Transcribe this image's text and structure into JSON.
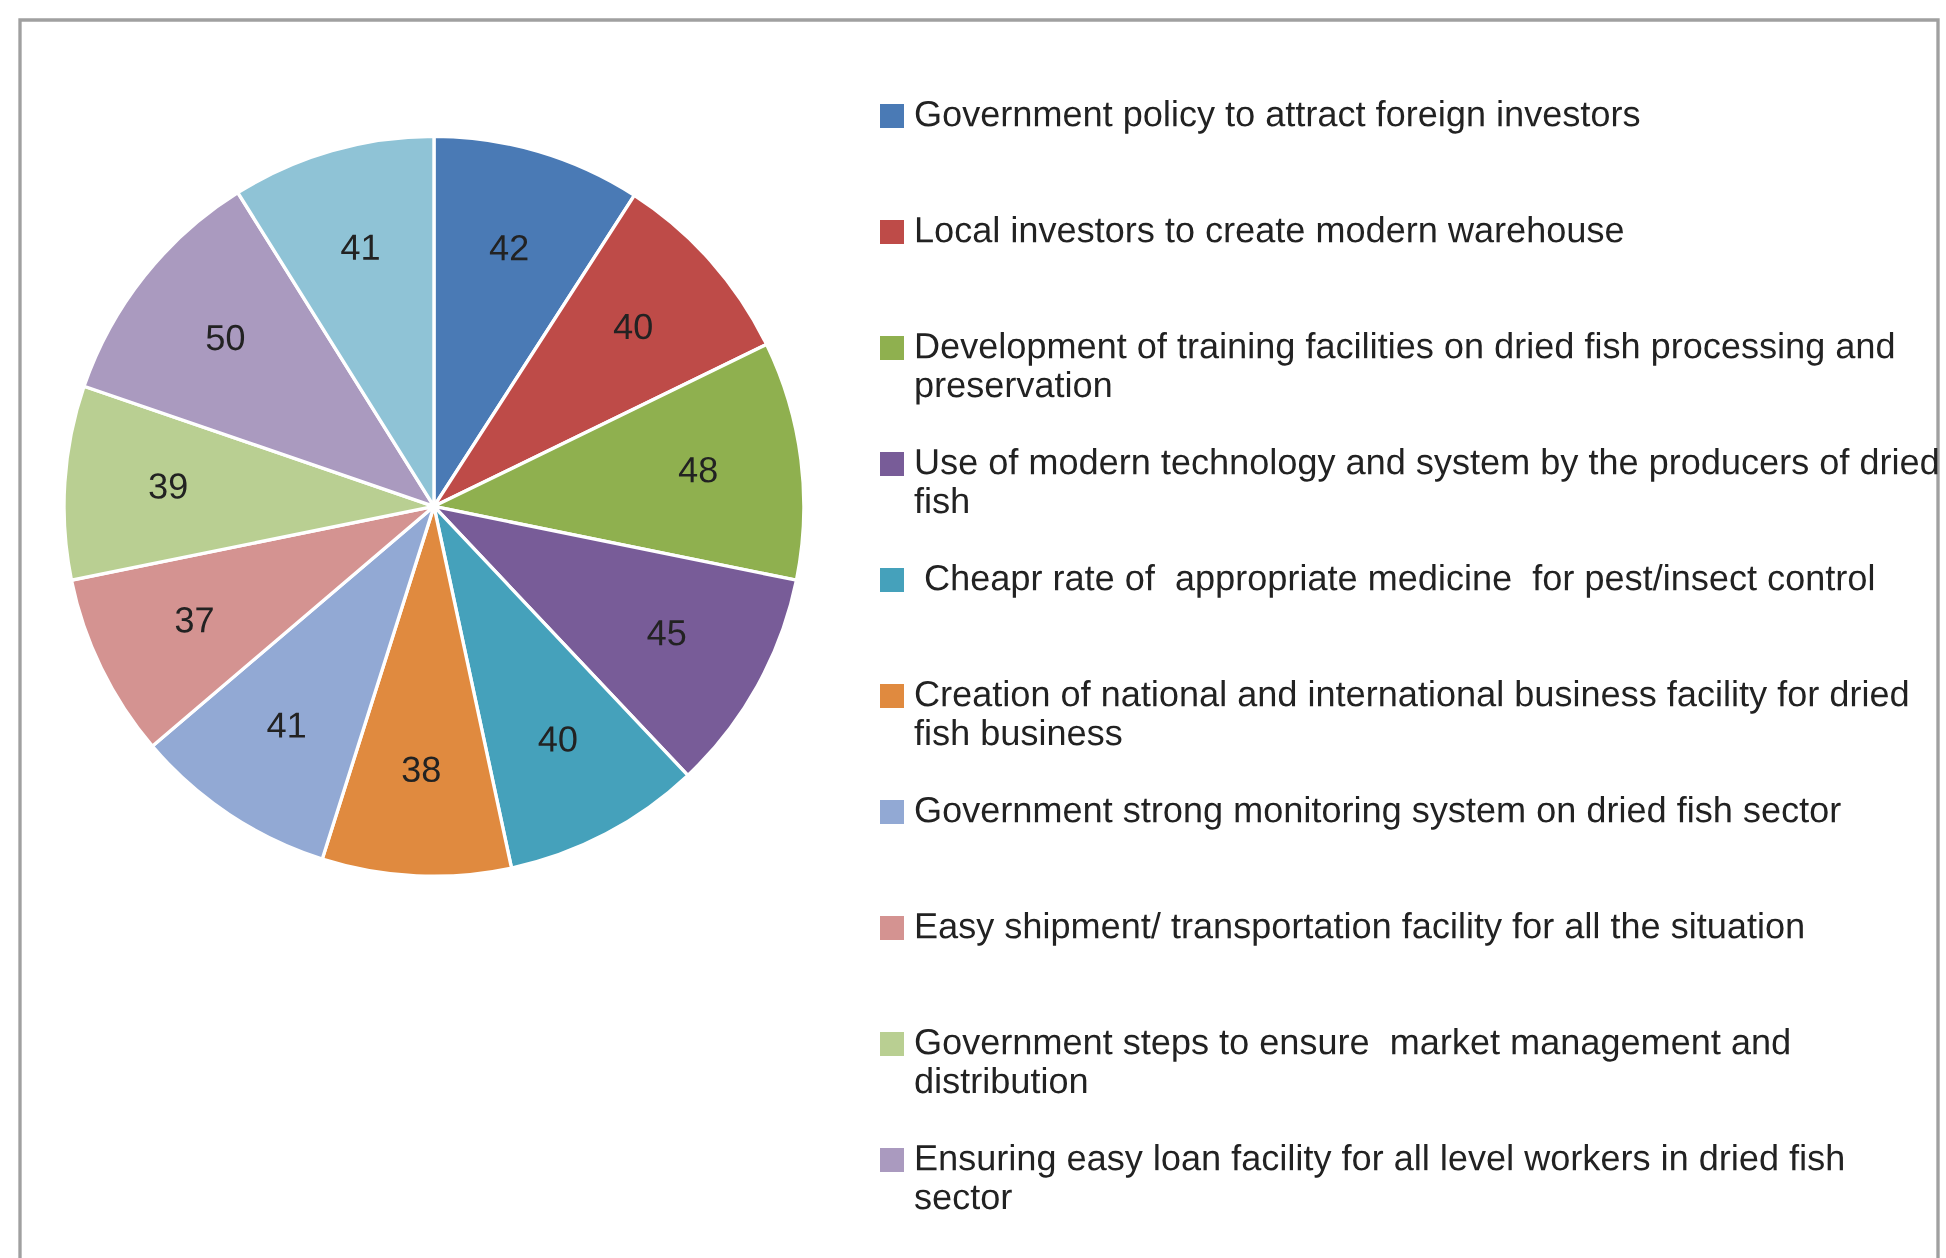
{
  "chart_data": {
    "type": "pie",
    "categories": [
      "Government policy to attract foreign investors",
      "Local investors to create modern warehouse",
      "Development of training facilities on dried fish processing and preservation",
      "Use of modern technology and system by the producers of dried fish",
      " Cheapr rate of  appropriate medicine  for pest/insect control",
      "Creation of national and international business facility for dried fish business",
      "Government strong monitoring system on dried fish sector",
      "Easy shipment/ transportation facility for all the situation",
      "Government steps to ensure  market management and distribution",
      "Ensuring easy loan facility for all level workers in dried fish sector",
      null
    ],
    "values": [
      42,
      40,
      48,
      45,
      40,
      38,
      41,
      37,
      39,
      50,
      41
    ],
    "colors": [
      "#4a7ab5",
      "#be4b48",
      "#8fb04f",
      "#785c98",
      "#45a1bb",
      "#e08a3f",
      "#92a9d4",
      "#d49391",
      "#b9cf92",
      "#aa9abf",
      "#8fc3d6"
    ],
    "data_labels": true,
    "legend": "right"
  }
}
